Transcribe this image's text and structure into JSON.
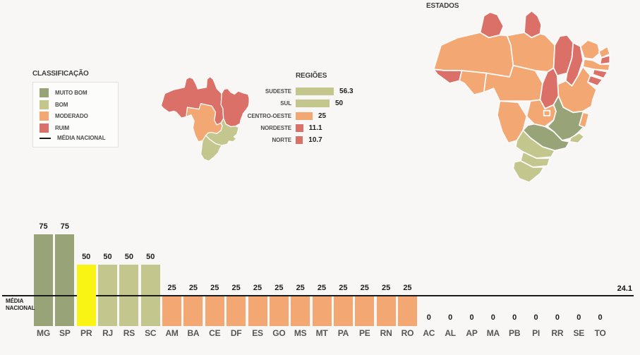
{
  "colors": {
    "muito_bom": "#99a378",
    "bom": "#c4c78d",
    "moderado": "#f3a772",
    "ruim": "#db7068",
    "highlight": "#f9f414",
    "media_line": "#1b1b1b"
  },
  "legend": {
    "title": "CLASSIFICAÇÃO",
    "items": [
      {
        "label": "MUITO BOM",
        "class": "muito_bom"
      },
      {
        "label": "BOM",
        "class": "bom"
      },
      {
        "label": "MODERADO",
        "class": "moderado"
      },
      {
        "label": "RUIM",
        "class": "ruim"
      }
    ],
    "media_item": {
      "label": "MÉDIA NACIONAL"
    }
  },
  "regions_chart": {
    "title": "REGIÕES",
    "rows": [
      {
        "label": "SUDESTE",
        "value": 56.3,
        "display": "56.3",
        "class": "bom"
      },
      {
        "label": "SUL",
        "value": 50,
        "display": "50",
        "class": "bom"
      },
      {
        "label": "CENTRO-OESTE",
        "value": 25,
        "display": "25",
        "class": "moderado"
      },
      {
        "label": "NORDESTE",
        "value": 11.1,
        "display": "11.1",
        "class": "ruim"
      },
      {
        "label": "NORTE",
        "value": 10.7,
        "display": "10.7",
        "class": "ruim"
      }
    ]
  },
  "states_map": {
    "title": "ESTADOS",
    "classes": {
      "RR": "ruim",
      "AP": "ruim",
      "AM": "moderado",
      "PA": "moderado",
      "AC": "ruim",
      "RO": "moderado",
      "MT": "moderado",
      "TO": "ruim",
      "MA": "ruim",
      "PI": "ruim",
      "CE": "moderado",
      "RN": "moderado",
      "PB": "ruim",
      "PE": "moderado",
      "AL": "ruim",
      "SE": "ruim",
      "BA": "moderado",
      "GO": "moderado",
      "DF": "moderado",
      "MG": "muito_bom",
      "ES": "moderado",
      "RJ": "bom",
      "SP": "muito_bom",
      "MS": "moderado",
      "PR": "bom",
      "SC": "bom",
      "RS": "bom"
    }
  },
  "bar_chart": {
    "media_label_line1": "MÉDIA",
    "media_label_line2": "NACIONAL",
    "media_value": "24.1",
    "bars": [
      {
        "label": "MG",
        "value": 75,
        "display": "75",
        "class": "muito_bom"
      },
      {
        "label": "SP",
        "value": 75,
        "display": "75",
        "class": "muito_bom"
      },
      {
        "label": "PR",
        "value": 50,
        "display": "50",
        "class": "highlight"
      },
      {
        "label": "RJ",
        "value": 50,
        "display": "50",
        "class": "bom"
      },
      {
        "label": "RS",
        "value": 50,
        "display": "50",
        "class": "bom"
      },
      {
        "label": "SC",
        "value": 50,
        "display": "50",
        "class": "bom"
      },
      {
        "label": "AM",
        "value": 25,
        "display": "25",
        "class": "moderado"
      },
      {
        "label": "BA",
        "value": 25,
        "display": "25",
        "class": "moderado"
      },
      {
        "label": "CE",
        "value": 25,
        "display": "25",
        "class": "moderado"
      },
      {
        "label": "DF",
        "value": 25,
        "display": "25",
        "class": "moderado"
      },
      {
        "label": "ES",
        "value": 25,
        "display": "25",
        "class": "moderado"
      },
      {
        "label": "GO",
        "value": 25,
        "display": "25",
        "class": "moderado"
      },
      {
        "label": "MS",
        "value": 25,
        "display": "25",
        "class": "moderado"
      },
      {
        "label": "MT",
        "value": 25,
        "display": "25",
        "class": "moderado"
      },
      {
        "label": "PA",
        "value": 25,
        "display": "25",
        "class": "moderado"
      },
      {
        "label": "PE",
        "value": 25,
        "display": "25",
        "class": "moderado"
      },
      {
        "label": "RN",
        "value": 25,
        "display": "25",
        "class": "moderado"
      },
      {
        "label": "RO",
        "value": 25,
        "display": "25",
        "class": "moderado"
      },
      {
        "label": "AC",
        "value": 0,
        "display": "0",
        "class": "ruim"
      },
      {
        "label": "AL",
        "value": 0,
        "display": "0",
        "class": "ruim"
      },
      {
        "label": "AP",
        "value": 0,
        "display": "0",
        "class": "ruim"
      },
      {
        "label": "MA",
        "value": 0,
        "display": "0",
        "class": "ruim"
      },
      {
        "label": "PB",
        "value": 0,
        "display": "0",
        "class": "ruim"
      },
      {
        "label": "PI",
        "value": 0,
        "display": "0",
        "class": "ruim"
      },
      {
        "label": "RR",
        "value": 0,
        "display": "0",
        "class": "ruim"
      },
      {
        "label": "SE",
        "value": 0,
        "display": "0",
        "class": "ruim"
      },
      {
        "label": "TO",
        "value": 0,
        "display": "0",
        "class": "ruim"
      }
    ]
  },
  "chart_data": [
    {
      "type": "bar",
      "orientation": "horizontal",
      "title": "REGIÕES",
      "categories": [
        "SUDESTE",
        "SUL",
        "CENTRO-OESTE",
        "NORDESTE",
        "NORTE"
      ],
      "values": [
        56.3,
        50,
        25,
        11.1,
        10.7
      ],
      "value_labels": true,
      "xlim": [
        0,
        60
      ],
      "grid": false,
      "colors_by_class": [
        "bom",
        "bom",
        "moderado",
        "ruim",
        "ruim"
      ]
    },
    {
      "type": "bar",
      "orientation": "vertical",
      "title": "",
      "categories": [
        "MG",
        "SP",
        "PR",
        "RJ",
        "RS",
        "SC",
        "AM",
        "BA",
        "CE",
        "DF",
        "ES",
        "GO",
        "MS",
        "MT",
        "PA",
        "PE",
        "RN",
        "RO",
        "AC",
        "AL",
        "AP",
        "MA",
        "PB",
        "PI",
        "RR",
        "SE",
        "TO"
      ],
      "values": [
        75,
        75,
        50,
        50,
        50,
        50,
        25,
        25,
        25,
        25,
        25,
        25,
        25,
        25,
        25,
        25,
        25,
        25,
        0,
        0,
        0,
        0,
        0,
        0,
        0,
        0,
        0
      ],
      "value_labels": true,
      "ylim": [
        0,
        80
      ],
      "grid": false,
      "highlight_category": "PR",
      "annotations": [
        {
          "label": "MÉDIA NACIONAL",
          "value": 24.1
        }
      ]
    }
  ]
}
